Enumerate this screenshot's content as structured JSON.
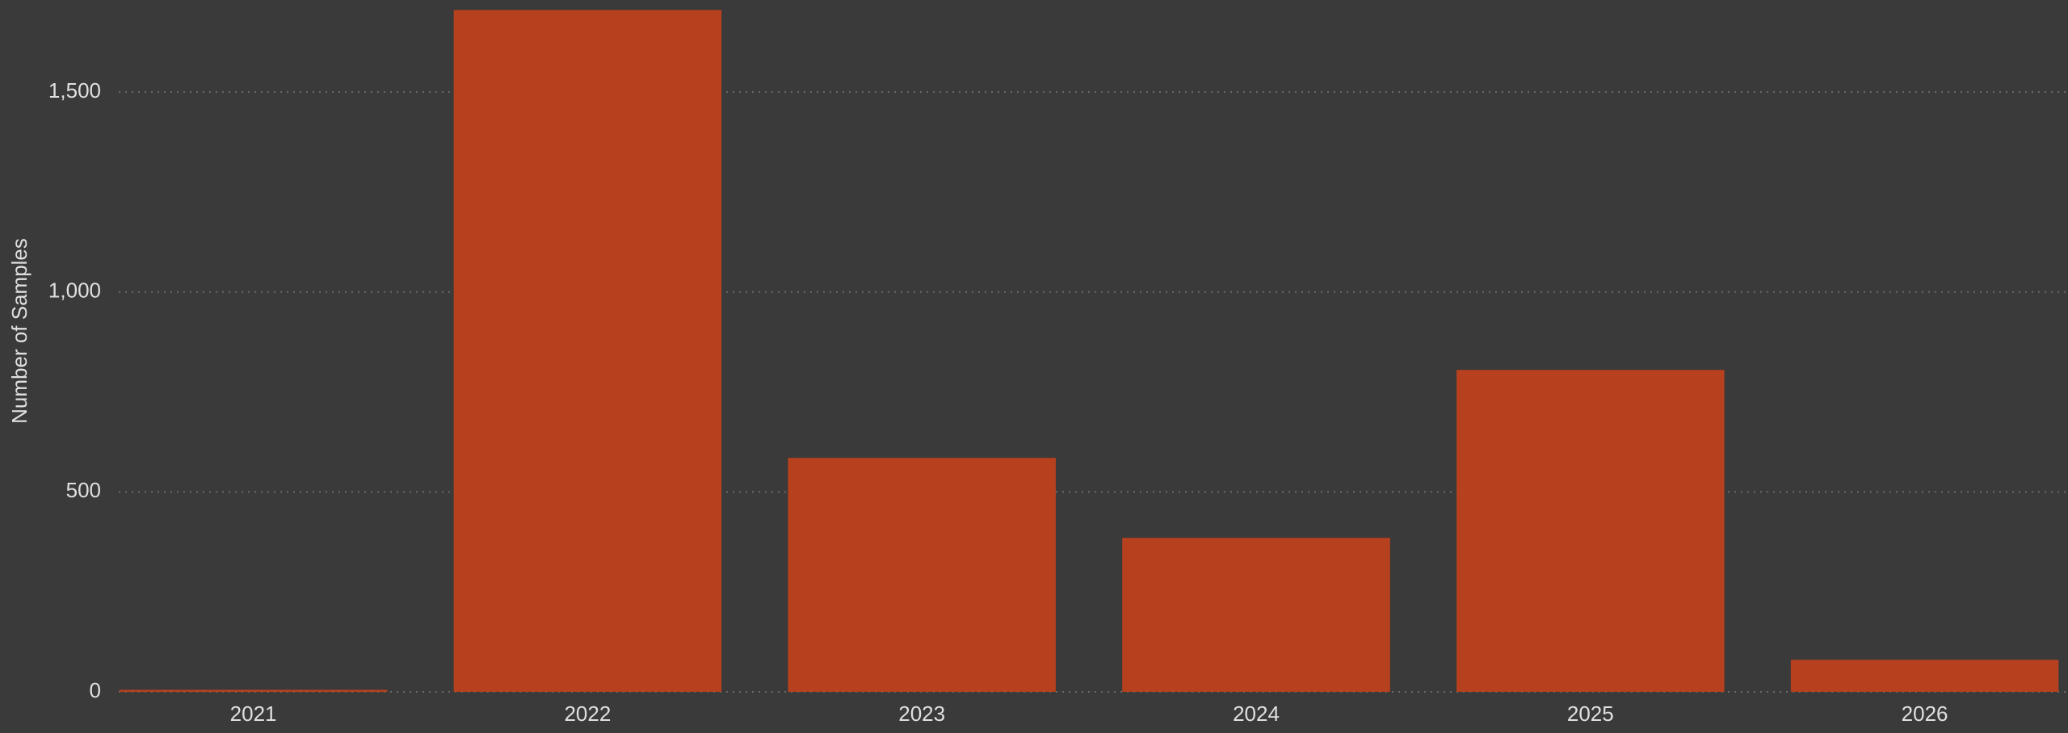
{
  "chart_data": {
    "type": "bar",
    "y_label": "Number of Samples",
    "categories": [
      "2021",
      "2022",
      "2023",
      "2024",
      "2025",
      "2026"
    ],
    "values": [
      5,
      1705,
      585,
      385,
      805,
      80
    ],
    "color": "#b7411e",
    "ylim": [
      0,
      1730
    ],
    "yticks": [
      0,
      500,
      {
        "value": 1000,
        "label": "1,000"
      },
      {
        "value": 1500,
        "label": "1,500"
      }
    ],
    "grid": true
  }
}
